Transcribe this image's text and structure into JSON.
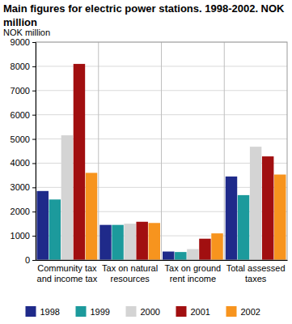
{
  "chart_data": {
    "type": "bar",
    "title": "Main figures for electric power stations. 1998-2002. NOK million",
    "y_label": "NOK million",
    "categories": [
      "Community tax and income tax",
      "Tax on natural resources",
      "Tax on ground rent income",
      "Total assessed taxes"
    ],
    "series": [
      {
        "name": "1998",
        "color": "#1f2a8a",
        "values": [
          2850,
          1450,
          350,
          3450
        ]
      },
      {
        "name": "1999",
        "color": "#1c9a9c",
        "values": [
          2500,
          1450,
          330,
          2680
        ]
      },
      {
        "name": "2000",
        "color": "#d4d4d4",
        "values": [
          5150,
          1500,
          450,
          4680
        ]
      },
      {
        "name": "2001",
        "color": "#a10f10",
        "values": [
          8100,
          1580,
          880,
          4280
        ]
      },
      {
        "name": "2002",
        "color": "#f7941e",
        "values": [
          3600,
          1530,
          1100,
          3530
        ]
      }
    ],
    "ylim": [
      0,
      9000
    ],
    "yticks": [
      0,
      1000,
      2000,
      3000,
      4000,
      5000,
      6000,
      7000,
      8000,
      9000
    ],
    "grid": true,
    "legend": "bottom"
  }
}
